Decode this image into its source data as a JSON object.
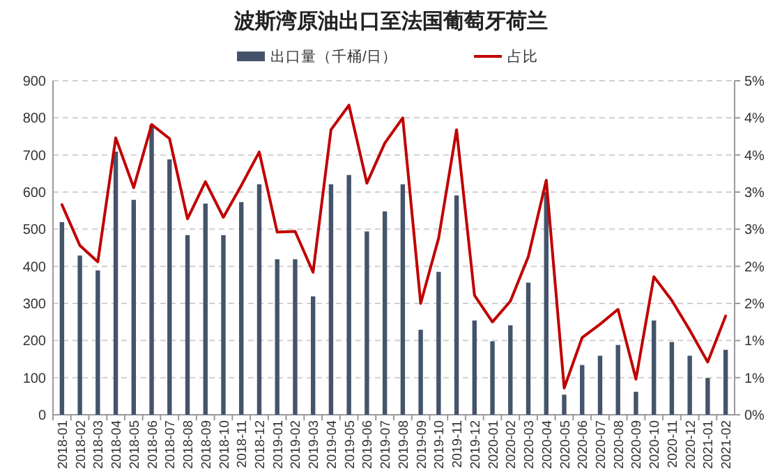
{
  "chart_data": {
    "type": "bar",
    "title": "波斯湾原油出口至法国葡萄牙荷兰",
    "categories": [
      "2018-01",
      "2018-02",
      "2018-03",
      "2018-04",
      "2018-05",
      "2018-06",
      "2018-07",
      "2018-08",
      "2018-09",
      "2018-10",
      "2018-11",
      "2018-12",
      "2019-01",
      "2019-02",
      "2019-03",
      "2019-04",
      "2019-05",
      "2019-06",
      "2019-07",
      "2019-08",
      "2019-09",
      "2019-10",
      "2019-11",
      "2019-12",
      "2020-01",
      "2020-02",
      "2020-03",
      "2020-04",
      "2020-05",
      "2020-06",
      "2020-07",
      "2020-08",
      "2020-09",
      "2020-10",
      "2020-11",
      "2020-12",
      "2021-01",
      "2021-02"
    ],
    "series": [
      {
        "name": "出口量（千桶/日）",
        "color": "#44546a",
        "values": [
          519,
          429,
          389,
          709,
          579,
          781,
          688,
          484,
          569,
          484,
          573,
          621,
          419,
          419,
          319,
          621,
          646,
          494,
          548,
          621,
          229,
          385,
          591,
          254,
          198,
          241,
          356,
          600,
          54,
          134,
          159,
          188,
          62,
          254,
          196,
          159,
          99,
          175
        ]
      },
      {
        "name": "占比",
        "type": "line",
        "axis": "y2",
        "color": "#c00000",
        "values": [
          2.83,
          2.28,
          2.06,
          3.73,
          3.06,
          3.91,
          3.72,
          2.64,
          3.14,
          2.66,
          3.09,
          3.54,
          2.46,
          2.47,
          1.92,
          3.84,
          4.17,
          3.12,
          3.66,
          4.0,
          1.5,
          2.38,
          3.84,
          1.61,
          1.25,
          1.53,
          2.13,
          3.16,
          0.36,
          1.04,
          1.22,
          1.42,
          0.48,
          1.86,
          1.54,
          1.14,
          0.71,
          1.33
        ]
      }
    ],
    "ylim": [
      0,
      900
    ],
    "yticks": [
      0,
      100,
      200,
      300,
      400,
      500,
      600,
      700,
      800,
      900
    ],
    "y2lim": [
      0,
      4.5
    ],
    "y2ticks": [
      {
        "value": 0,
        "label": "0%"
      },
      {
        "value": 0.5,
        "label": "1%"
      },
      {
        "value": 1,
        "label": "1%"
      },
      {
        "value": 1.5,
        "label": "2%"
      },
      {
        "value": 2,
        "label": "2%"
      },
      {
        "value": 2.5,
        "label": "3%"
      },
      {
        "value": 3,
        "label": "3%"
      },
      {
        "value": 3.5,
        "label": "4%"
      },
      {
        "value": 4,
        "label": "4%"
      },
      {
        "value": 4.5,
        "label": "5%"
      }
    ],
    "grid": "y",
    "legend": "top",
    "marker": "none",
    "line_style": "solid"
  }
}
